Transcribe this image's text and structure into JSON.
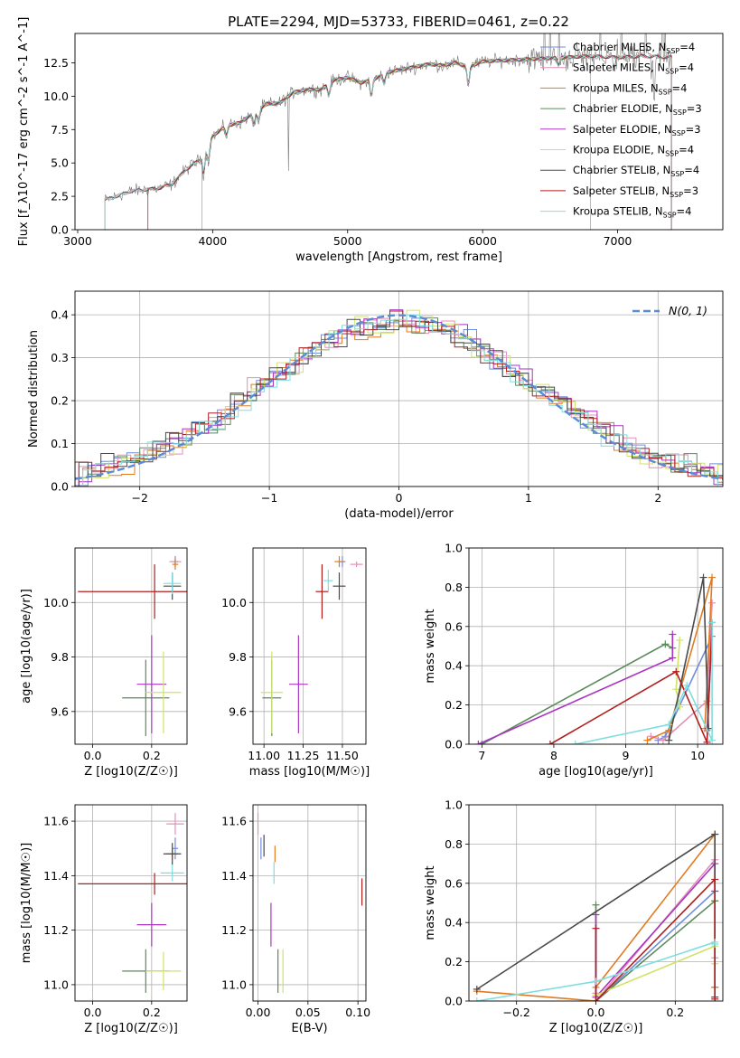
{
  "figure": {
    "title": "PLATE=2294, MJD=53733, FIBERID=0461, z=0.22"
  },
  "colors": {
    "Chabrier MILES": "#6f8ddb",
    "Salpeter MILES": "#e58fb8",
    "Kroupa MILES": "#e07b22",
    "Chabrier ELODIE": "#5a8a5a",
    "Salpeter ELODIE": "#a934c2",
    "Kroupa ELODIE": "#cfe36a",
    "Chabrier STELIB": "#4a4a4a",
    "Salpeter STELIB": "#b01e1e",
    "Kroupa STELIB": "#7fdde0",
    "normal": "#5b8bd6",
    "grid": "#b0b0b0"
  },
  "chart_data": [
    {
      "id": "spectrum",
      "type": "line",
      "xlabel": "wavelength [Angstrom, rest frame]",
      "ylabel": "Flux [f_λ10^-17 erg cm^-2 s^-1 A^-1]",
      "xlim": [
        2980,
        7780
      ],
      "ylim": [
        0,
        14.7
      ],
      "xticks": [
        3000,
        4000,
        5000,
        6000,
        7000
      ],
      "yticks": [
        0.0,
        2.5,
        5.0,
        7.5,
        10.0,
        12.5
      ],
      "grid": false,
      "legend_position": "right",
      "continuum": {
        "x": [
          3200,
          3400,
          3600,
          3700,
          3800,
          3900,
          4000,
          4100,
          4200,
          4300,
          4400,
          4500,
          4600,
          4700,
          4800,
          4900,
          5000,
          5100,
          5200,
          5300,
          5400,
          5500,
          5600,
          5700,
          5800,
          5900,
          6000,
          6200,
          6400,
          6600,
          6800,
          7000,
          7200,
          7400
        ],
        "y": [
          2.2,
          2.9,
          3.1,
          3.4,
          4.5,
          5.2,
          7.0,
          7.8,
          8.0,
          8.7,
          9.4,
          9.5,
          10.3,
          10.5,
          10.5,
          11.2,
          11.4,
          11.0,
          11.3,
          11.8,
          12.0,
          12.2,
          12.4,
          12.3,
          12.5,
          12.2,
          12.6,
          12.7,
          12.8,
          12.9,
          13.0,
          12.9,
          13.0,
          12.9
        ]
      },
      "series": [
        {
          "name": "Chabrier MILES, N_SSP=4",
          "label_main": "Chabrier MILES, N",
          "label_sub": "SSP",
          "label_tail": "=4",
          "start": 3200,
          "end": 7400
        },
        {
          "name": "Salpeter MILES, N_SSP=4",
          "label_main": "Salpeter MILES, N",
          "label_sub": "SSP",
          "label_tail": "=4",
          "start": 3200,
          "end": 7400
        },
        {
          "name": "Kroupa MILES, N_SSP=4",
          "label_main": "Kroupa MILES, N",
          "label_sub": "SSP",
          "label_tail": "=4",
          "start": 3200,
          "end": 7400
        },
        {
          "name": "Chabrier ELODIE, N_SSP=3",
          "label_main": "Chabrier ELODIE, N",
          "label_sub": "SSP",
          "label_tail": "=3",
          "start": 3920,
          "end": 6800
        },
        {
          "name": "Salpeter ELODIE, N_SSP=3",
          "label_main": "Salpeter ELODIE, N",
          "label_sub": "SSP",
          "label_tail": "=3",
          "start": 3920,
          "end": 6800
        },
        {
          "name": "Kroupa ELODIE, N_SSP=4",
          "label_main": "Kroupa ELODIE, N",
          "label_sub": "SSP",
          "label_tail": "=4",
          "start": 3920,
          "end": 6800
        },
        {
          "name": "Chabrier STELIB, N_SSP=4",
          "label_main": "Chabrier STELIB, N",
          "label_sub": "SSP",
          "label_tail": "=4",
          "start": 3200,
          "end": 7400
        },
        {
          "name": "Salpeter STELIB, N_SSP=3",
          "label_main": "Salpeter STELIB, N",
          "label_sub": "SSP",
          "label_tail": "=3",
          "start": 3520,
          "end": 7400
        },
        {
          "name": "Kroupa STELIB, N_SSP=4",
          "label_main": "Kroupa STELIB, N",
          "label_sub": "SSP",
          "label_tail": "=4",
          "start": 3200,
          "end": 7400
        }
      ]
    },
    {
      "id": "residuals",
      "type": "line",
      "xlabel": "(data-model)/error",
      "ylabel": "Normed distribution",
      "xlim": [
        -2.5,
        2.5
      ],
      "ylim": [
        0,
        0.455
      ],
      "xticks": [
        -2,
        -1,
        0,
        1,
        2
      ],
      "yticks": [
        0.0,
        0.1,
        0.2,
        0.3,
        0.4
      ],
      "grid": true,
      "legend_position": "top-right",
      "normal_label": "N(0, 1)",
      "bin_width": 0.1
    },
    {
      "id": "age-vs-Z",
      "type": "scatter",
      "xlabel": "Z [log10(Z/Z☉)]",
      "ylabel": "age  [log10(age/yr)]",
      "xlim": [
        -0.06,
        0.32
      ],
      "ylim": [
        9.48,
        10.2
      ],
      "xticks": [
        0.0,
        0.2
      ],
      "yticks": [
        9.6,
        9.8,
        10.0
      ],
      "grid": true,
      "points": [
        {
          "model": "Chabrier MILES",
          "x": 0.28,
          "y": 10.15,
          "xerr": 0.01,
          "yerr": 0.02
        },
        {
          "model": "Salpeter MILES",
          "x": 0.28,
          "y": 10.15,
          "xerr": 0.02,
          "yerr": 0.01
        },
        {
          "model": "Kroupa MILES",
          "x": 0.28,
          "y": 10.14,
          "xerr": 0.01,
          "yerr": 0.02
        },
        {
          "model": "Chabrier ELODIE",
          "x": 0.18,
          "y": 9.65,
          "xerr": 0.08,
          "yerr": 0.14
        },
        {
          "model": "Salpeter ELODIE",
          "x": 0.2,
          "y": 9.7,
          "xerr": 0.05,
          "yerr": 0.18
        },
        {
          "model": "Kroupa ELODIE",
          "x": 0.24,
          "y": 9.67,
          "xerr": 0.06,
          "yerr": 0.15
        },
        {
          "model": "Chabrier STELIB",
          "x": 0.27,
          "y": 10.06,
          "xerr": 0.03,
          "yerr": 0.05
        },
        {
          "model": "Salpeter STELIB",
          "x": 0.21,
          "y": 10.04,
          "xerr": 0.26,
          "yerr": 0.1
        },
        {
          "model": "Kroupa STELIB",
          "x": 0.27,
          "y": 10.07,
          "xerr": 0.03,
          "yerr": 0.04
        }
      ]
    },
    {
      "id": "age-vs-mass",
      "type": "scatter",
      "xlabel": "mass [log10(M/M☉)]",
      "ylabel": "",
      "xlim": [
        10.93,
        11.65
      ],
      "ylim": [
        9.48,
        10.2
      ],
      "xticks": [
        11.0,
        11.25,
        11.5
      ],
      "yticks": [
        9.6,
        9.8,
        10.0
      ],
      "grid": true,
      "points": [
        {
          "model": "Chabrier MILES",
          "x": 11.5,
          "y": 10.15,
          "xerr": 0.02,
          "yerr": 0.02
        },
        {
          "model": "Salpeter MILES",
          "x": 11.59,
          "y": 10.14,
          "xerr": 0.04,
          "yerr": 0.01
        },
        {
          "model": "Kroupa MILES",
          "x": 11.48,
          "y": 10.15,
          "xerr": 0.03,
          "yerr": 0.02
        },
        {
          "model": "Chabrier ELODIE",
          "x": 11.05,
          "y": 9.65,
          "xerr": 0.06,
          "yerr": 0.14
        },
        {
          "model": "Salpeter ELODIE",
          "x": 11.22,
          "y": 9.7,
          "xerr": 0.06,
          "yerr": 0.18
        },
        {
          "model": "Kroupa ELODIE",
          "x": 11.05,
          "y": 9.67,
          "xerr": 0.07,
          "yerr": 0.15
        },
        {
          "model": "Chabrier STELIB",
          "x": 11.48,
          "y": 10.06,
          "xerr": 0.04,
          "yerr": 0.05
        },
        {
          "model": "Salpeter STELIB",
          "x": 11.37,
          "y": 10.04,
          "xerr": 0.04,
          "yerr": 0.1
        },
        {
          "model": "Kroupa STELIB",
          "x": 11.41,
          "y": 10.08,
          "xerr": 0.03,
          "yerr": 0.04
        }
      ]
    },
    {
      "id": "mass-weight-vs-age",
      "type": "line",
      "xlabel": "age  [log10(age/yr)]",
      "ylabel": "mass weight",
      "xlim": [
        6.82,
        10.35
      ],
      "ylim": [
        0,
        1.0
      ],
      "xticks": [
        7,
        8,
        9,
        10
      ],
      "yticks": [
        0.0,
        0.2,
        0.4,
        0.6,
        0.8,
        1.0
      ],
      "grid": true,
      "series": [
        {
          "model": "Chabrier MILES",
          "x": [
            9.45,
            9.55,
            10.2,
            10.13
          ],
          "y": [
            0.02,
            0.04,
            0.55,
            0.07
          ]
        },
        {
          "model": "Salpeter MILES",
          "x": [
            9.35,
            9.52,
            10.13,
            10.2
          ],
          "y": [
            0.04,
            0.02,
            0.22,
            0.72
          ]
        },
        {
          "model": "Kroupa MILES",
          "x": [
            9.3,
            9.6,
            10.2,
            10.1
          ],
          "y": [
            0.02,
            0.07,
            0.85,
            0.08
          ]
        },
        {
          "model": "Chabrier ELODIE",
          "x": [
            7.0,
            9.55,
            9.65
          ],
          "y": [
            0.0,
            0.51,
            0.49
          ]
        },
        {
          "model": "Salpeter ELODIE",
          "x": [
            6.95,
            9.65,
            9.65
          ],
          "y": [
            0.0,
            0.44,
            0.56
          ]
        },
        {
          "model": "Kroupa ELODIE",
          "x": [
            9.75,
            9.7,
            9.75
          ],
          "y": [
            0.19,
            0.28,
            0.53
          ]
        },
        {
          "model": "Chabrier STELIB",
          "x": [
            9.6,
            10.08,
            10.15
          ],
          "y": [
            0.02,
            0.85,
            0.08
          ]
        },
        {
          "model": "Salpeter STELIB",
          "x": [
            7.95,
            9.7,
            10.13,
            10.2
          ],
          "y": [
            0.0,
            0.37,
            0.01,
            0.62
          ]
        },
        {
          "model": "Kroupa STELIB",
          "x": [
            8.3,
            9.6,
            9.85,
            10.2,
            10.2
          ],
          "y": [
            0.0,
            0.1,
            0.3,
            0.02,
            0.62
          ]
        }
      ]
    },
    {
      "id": "mass-vs-Z",
      "type": "scatter",
      "xlabel": "Z [log10(Z/Z☉)]",
      "ylabel": "mass [log10(M/M☉)]",
      "xlim": [
        -0.06,
        0.32
      ],
      "ylim": [
        10.94,
        11.66
      ],
      "xticks": [
        0.0,
        0.2
      ],
      "yticks": [
        11.0,
        11.2,
        11.4,
        11.6
      ],
      "grid": true,
      "points": [
        {
          "model": "Chabrier MILES",
          "x": 0.28,
          "y": 11.5,
          "xerr": 0.01,
          "yerr": 0.04
        },
        {
          "model": "Salpeter MILES",
          "x": 0.28,
          "y": 11.59,
          "xerr": 0.03,
          "yerr": 0.04
        },
        {
          "model": "Kroupa MILES",
          "x": 0.27,
          "y": 11.48,
          "xerr": 0.02,
          "yerr": 0.02
        },
        {
          "model": "Chabrier ELODIE",
          "x": 0.18,
          "y": 11.05,
          "xerr": 0.08,
          "yerr": 0.08
        },
        {
          "model": "Salpeter ELODIE",
          "x": 0.2,
          "y": 11.22,
          "xerr": 0.05,
          "yerr": 0.08
        },
        {
          "model": "Kroupa ELODIE",
          "x": 0.24,
          "y": 11.05,
          "xerr": 0.06,
          "yerr": 0.07
        },
        {
          "model": "Chabrier STELIB",
          "x": 0.27,
          "y": 11.48,
          "xerr": 0.03,
          "yerr": 0.04
        },
        {
          "model": "Salpeter STELIB",
          "x": 0.21,
          "y": 11.37,
          "xerr": 0.26,
          "yerr": 0.04
        },
        {
          "model": "Kroupa STELIB",
          "x": 0.27,
          "y": 11.41,
          "xerr": 0.04,
          "yerr": 0.03
        }
      ]
    },
    {
      "id": "mass-vs-ebv",
      "type": "scatter",
      "xlabel": "E(B-V)",
      "ylabel": "",
      "xlim": [
        -0.005,
        0.108
      ],
      "ylim": [
        10.94,
        11.66
      ],
      "xticks": [
        0.0,
        0.05,
        0.1
      ],
      "yticks": [
        11.0,
        11.2,
        11.4,
        11.6
      ],
      "grid": true,
      "points": [
        {
          "model": "Chabrier MILES",
          "x": 0.003,
          "y": 11.5,
          "xerr": 0.0,
          "yerr": 0.04
        },
        {
          "model": "Salpeter MILES",
          "x": 0.0,
          "y": 11.59,
          "xerr": 0.0,
          "yerr": 0.04
        },
        {
          "model": "Kroupa MILES",
          "x": 0.017,
          "y": 11.48,
          "xerr": 0.0,
          "yerr": 0.03
        },
        {
          "model": "Chabrier ELODIE",
          "x": 0.02,
          "y": 11.05,
          "xerr": 0.0,
          "yerr": 0.08
        },
        {
          "model": "Salpeter ELODIE",
          "x": 0.013,
          "y": 11.22,
          "xerr": 0.0,
          "yerr": 0.08
        },
        {
          "model": "Kroupa ELODIE",
          "x": 0.025,
          "y": 11.05,
          "xerr": 0.0,
          "yerr": 0.08
        },
        {
          "model": "Chabrier STELIB",
          "x": 0.006,
          "y": 11.51,
          "xerr": 0.0,
          "yerr": 0.04
        },
        {
          "model": "Salpeter STELIB",
          "x": 0.104,
          "y": 11.34,
          "xerr": 0.0,
          "yerr": 0.05
        },
        {
          "model": "Kroupa STELIB",
          "x": 0.016,
          "y": 11.41,
          "xerr": 0.0,
          "yerr": 0.04
        }
      ]
    },
    {
      "id": "mass-weight-vs-Z",
      "type": "line",
      "xlabel": "Z [log10(Z/Z☉)]",
      "ylabel": "mass weight",
      "xlim": [
        -0.32,
        0.32
      ],
      "ylim": [
        0,
        1.0
      ],
      "xticks": [
        -0.2,
        0.0,
        0.2
      ],
      "yticks": [
        0.0,
        0.2,
        0.4,
        0.6,
        0.8,
        1.0
      ],
      "grid": true,
      "series": [
        {
          "model": "Chabrier MILES",
          "x": [
            0.0,
            0.0,
            0.3,
            0.3
          ],
          "y": [
            0.02,
            0.0,
            0.56,
            0.07
          ]
        },
        {
          "model": "Salpeter MILES",
          "x": [
            0.0,
            0.0,
            0.3,
            0.3
          ],
          "y": [
            0.04,
            0.0,
            0.72,
            0.22
          ]
        },
        {
          "model": "Kroupa MILES",
          "x": [
            -0.3,
            0.0,
            0.0,
            0.3,
            0.3
          ],
          "y": [
            0.05,
            0.0,
            0.07,
            0.85,
            0.07
          ]
        },
        {
          "model": "Chabrier ELODIE",
          "x": [
            0.0,
            0.0,
            0.3,
            0.3
          ],
          "y": [
            0.49,
            0.0,
            0.51,
            0.51
          ]
        },
        {
          "model": "Salpeter ELODIE",
          "x": [
            0.0,
            0.0,
            0.3,
            0.3
          ],
          "y": [
            0.44,
            0.02,
            0.7,
            0.56
          ]
        },
        {
          "model": "Kroupa ELODIE",
          "x": [
            0.0,
            0.0,
            0.3,
            0.3
          ],
          "y": [
            0.0,
            0.03,
            0.28,
            0.19
          ]
        },
        {
          "model": "Chabrier STELIB",
          "x": [
            -0.3,
            0.3,
            0.3
          ],
          "y": [
            0.06,
            0.85,
            0.02
          ]
        },
        {
          "model": "Salpeter STELIB",
          "x": [
            0.0,
            0.0,
            0.3,
            0.3
          ],
          "y": [
            0.37,
            0.0,
            0.62,
            0.01
          ]
        },
        {
          "model": "Kroupa STELIB",
          "x": [
            -0.3,
            0.0,
            0.3,
            0.3
          ],
          "y": [
            0.0,
            0.1,
            0.3,
            0.29
          ]
        }
      ]
    }
  ]
}
